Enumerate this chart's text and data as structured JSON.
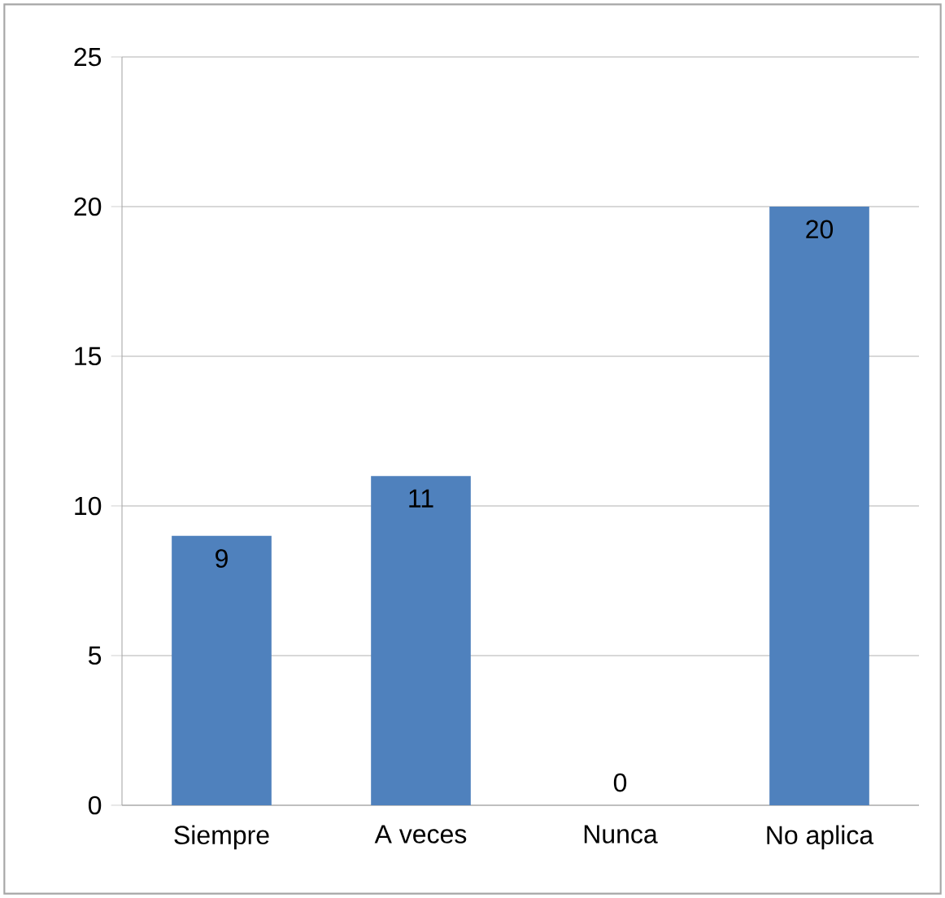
{
  "chart_data": {
    "type": "bar",
    "categories": [
      "Siempre",
      "A veces",
      "Nunca",
      "No aplica"
    ],
    "values": [
      9,
      11,
      0,
      20
    ],
    "color": "#4f81bd",
    "ylim": [
      0,
      25
    ],
    "yticks": [
      0,
      5,
      10,
      15,
      20,
      25
    ],
    "grid": "y",
    "data_labels": true
  }
}
